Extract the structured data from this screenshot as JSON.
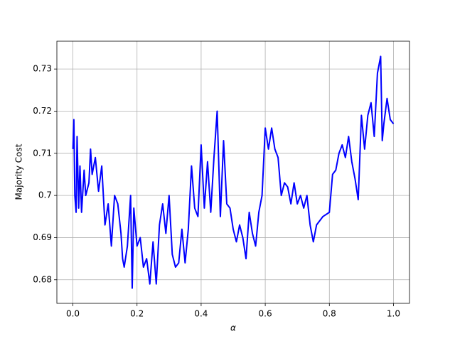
{
  "chart_data": {
    "type": "line",
    "x_label": "α",
    "y_label": "Majority Cost",
    "xlim": [
      -0.05,
      1.05
    ],
    "ylim": [
      0.6744,
      0.7366
    ],
    "xticks": [
      {
        "value": 0,
        "label": "0.0"
      },
      0.2,
      0.4,
      0.6,
      0.8,
      {
        "value": 1,
        "label": "1.0"
      }
    ],
    "yticks": [
      0.68,
      0.69,
      0.7,
      0.71,
      0.72,
      0.73
    ],
    "grid": true,
    "series": [
      {
        "color": "#0000ff",
        "x": [
          0.0,
          0.003,
          0.006,
          0.01,
          0.013,
          0.018,
          0.022,
          0.027,
          0.035,
          0.04,
          0.05,
          0.055,
          0.06,
          0.07,
          0.08,
          0.09,
          0.1,
          0.11,
          0.12,
          0.13,
          0.14,
          0.15,
          0.155,
          0.16,
          0.17,
          0.18,
          0.185,
          0.19,
          0.2,
          0.21,
          0.22,
          0.23,
          0.24,
          0.25,
          0.26,
          0.27,
          0.28,
          0.29,
          0.3,
          0.31,
          0.32,
          0.33,
          0.34,
          0.35,
          0.36,
          0.37,
          0.38,
          0.39,
          0.4,
          0.41,
          0.42,
          0.43,
          0.44,
          0.45,
          0.46,
          0.47,
          0.48,
          0.49,
          0.5,
          0.51,
          0.52,
          0.53,
          0.54,
          0.55,
          0.56,
          0.57,
          0.58,
          0.59,
          0.6,
          0.61,
          0.62,
          0.63,
          0.64,
          0.65,
          0.66,
          0.67,
          0.68,
          0.69,
          0.7,
          0.71,
          0.72,
          0.73,
          0.74,
          0.75,
          0.76,
          0.78,
          0.8,
          0.81,
          0.82,
          0.83,
          0.84,
          0.85,
          0.86,
          0.87,
          0.88,
          0.89,
          0.9,
          0.91,
          0.92,
          0.93,
          0.94,
          0.95,
          0.96,
          0.965,
          0.97,
          0.98,
          0.99,
          1.0
        ],
        "values": [
          0.711,
          0.718,
          0.7,
          0.696,
          0.714,
          0.697,
          0.707,
          0.696,
          0.706,
          0.7,
          0.703,
          0.711,
          0.705,
          0.709,
          0.701,
          0.707,
          0.693,
          0.698,
          0.688,
          0.7,
          0.698,
          0.691,
          0.685,
          0.683,
          0.688,
          0.7,
          0.678,
          0.697,
          0.688,
          0.69,
          0.683,
          0.685,
          0.679,
          0.689,
          0.679,
          0.693,
          0.698,
          0.691,
          0.7,
          0.686,
          0.683,
          0.684,
          0.692,
          0.684,
          0.692,
          0.707,
          0.697,
          0.695,
          0.712,
          0.697,
          0.708,
          0.696,
          0.709,
          0.72,
          0.695,
          0.713,
          0.698,
          0.697,
          0.692,
          0.689,
          0.693,
          0.69,
          0.685,
          0.696,
          0.691,
          0.688,
          0.696,
          0.7,
          0.716,
          0.711,
          0.716,
          0.711,
          0.709,
          0.7,
          0.703,
          0.702,
          0.698,
          0.703,
          0.698,
          0.7,
          0.697,
          0.7,
          0.693,
          0.689,
          0.693,
          0.695,
          0.696,
          0.705,
          0.706,
          0.71,
          0.712,
          0.709,
          0.714,
          0.708,
          0.704,
          0.699,
          0.719,
          0.711,
          0.719,
          0.722,
          0.714,
          0.729,
          0.733,
          0.713,
          0.717,
          0.723,
          0.718,
          0.717
        ]
      }
    ]
  }
}
